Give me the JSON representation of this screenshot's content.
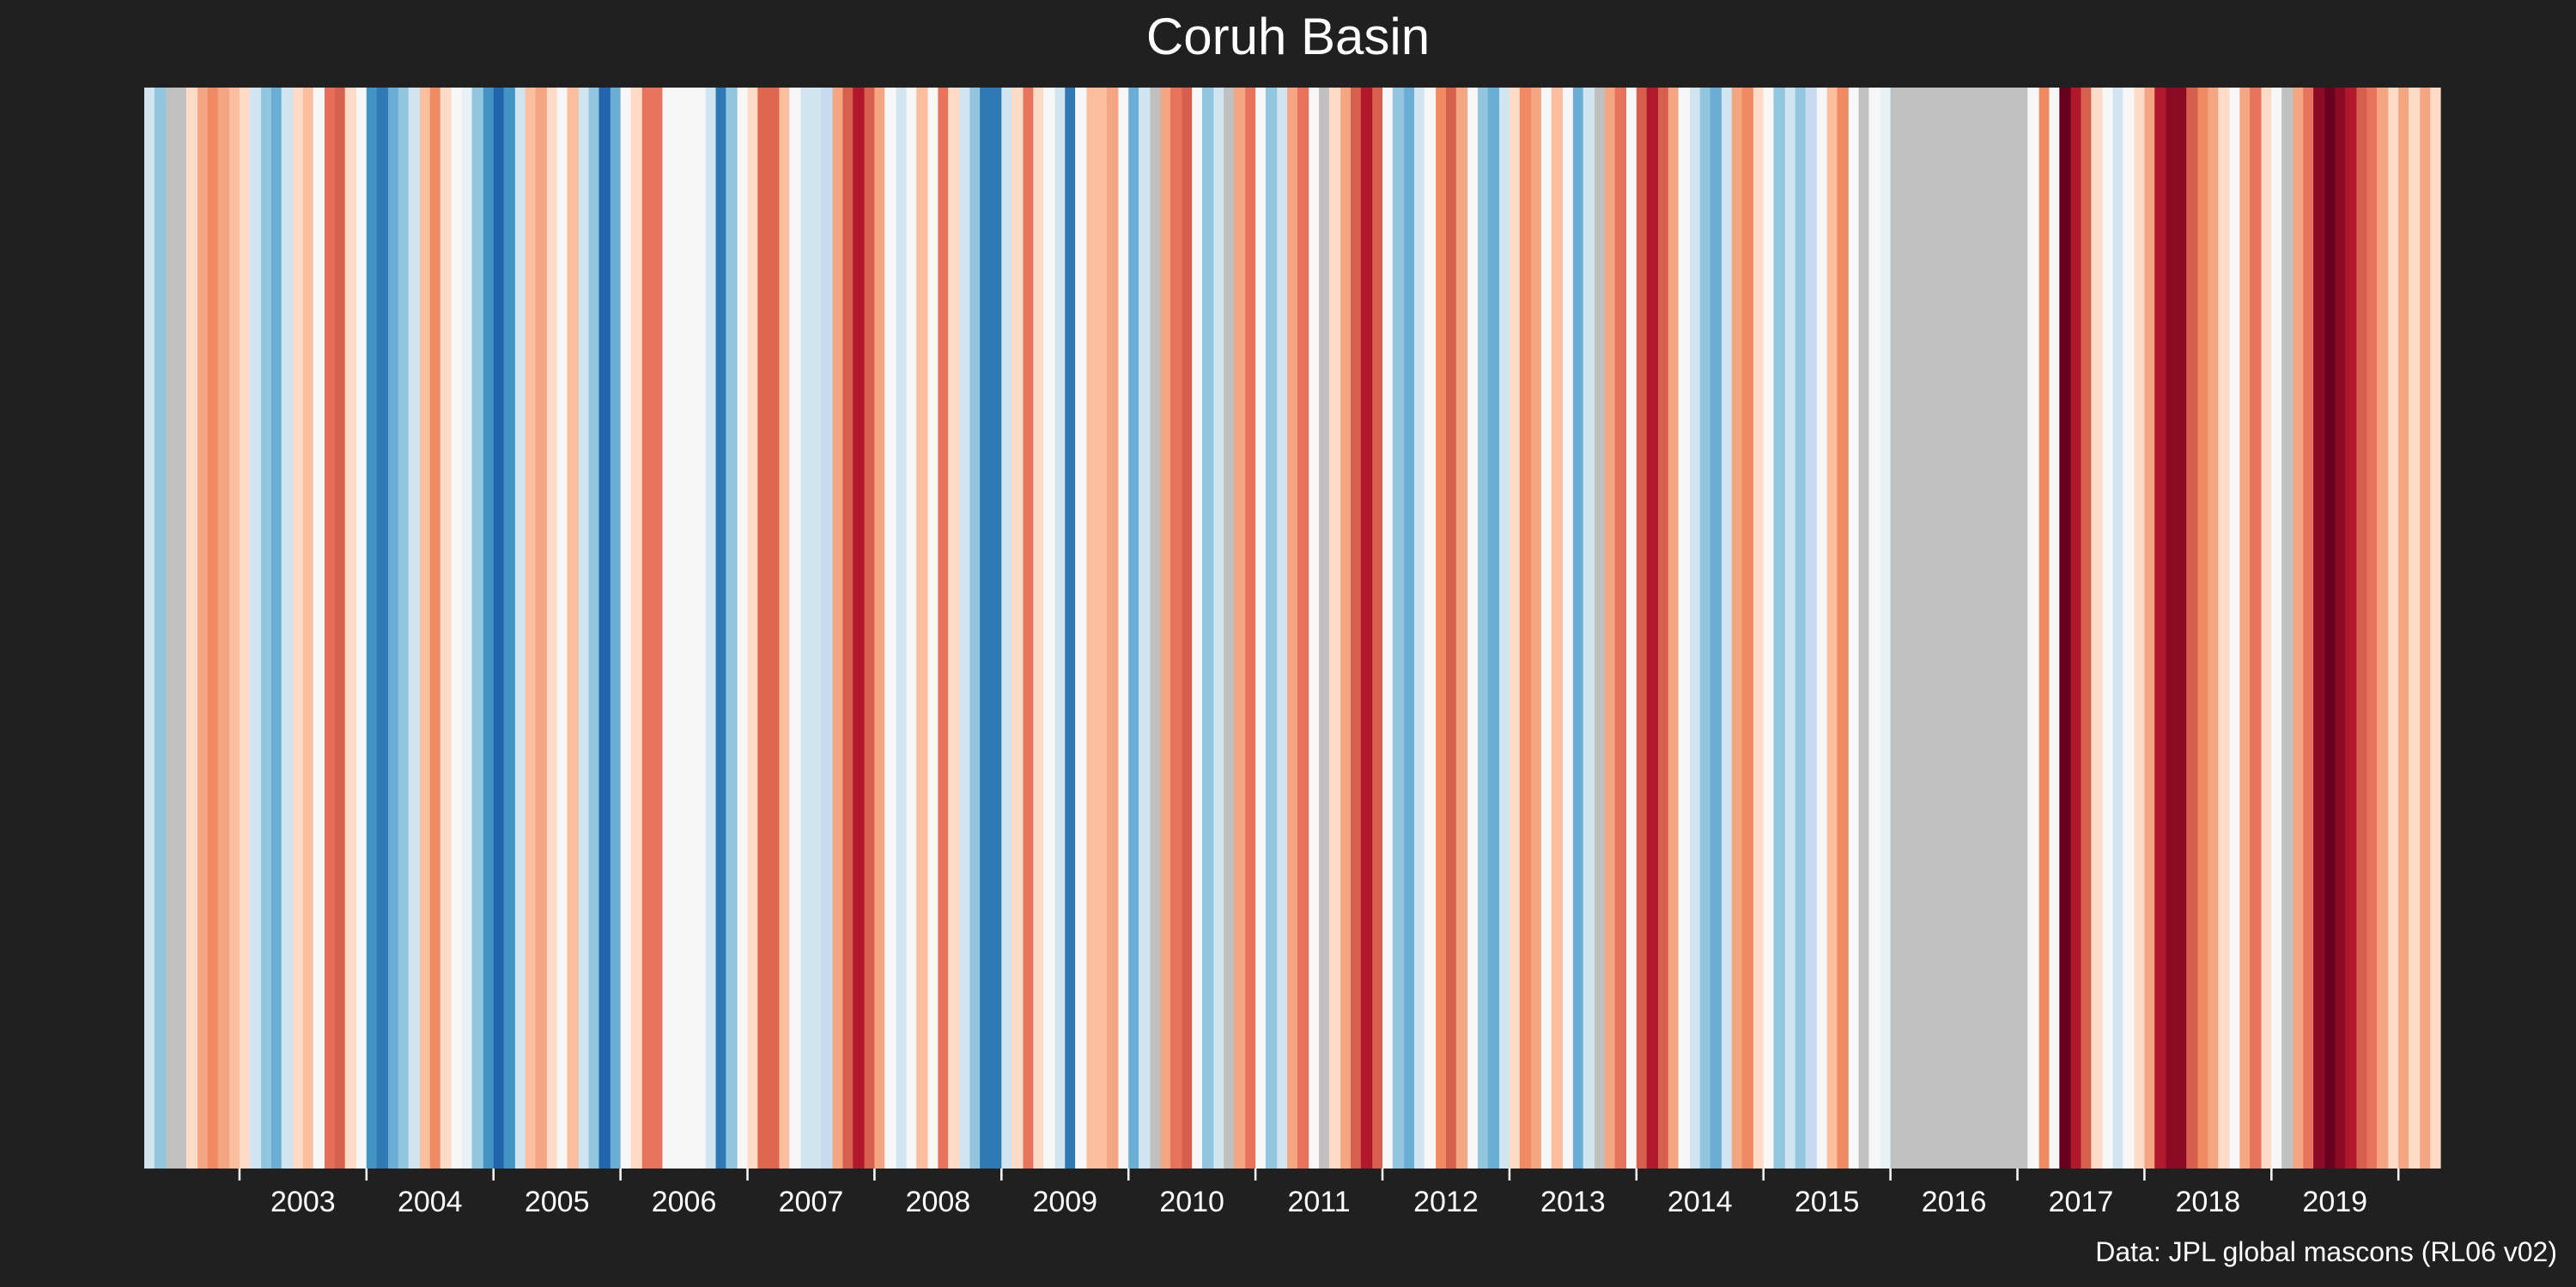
{
  "chart_data": {
    "type": "heatmap",
    "title": "Coruh Basin",
    "caption": "Data: JPL global mascons (RL06 v02)",
    "xlabel": "",
    "ylabel": "",
    "x_start": 2002.25,
    "x_end": 2020.33,
    "xticks": [
      2003,
      2004,
      2005,
      2006,
      2007,
      2008,
      2009,
      2010,
      2011,
      2012,
      2013,
      2014,
      2015,
      2016,
      2017,
      2018,
      2019
    ],
    "grid": false,
    "legend": "none",
    "missing_color": "#c0c0c0",
    "colors": {
      "background": "#202020",
      "text": "#ffffff",
      "missing": "#c0c0c0"
    },
    "stripes": [
      {
        "x0": 2002.25,
        "x1": 2002.33,
        "color": "#d1e5f0"
      },
      {
        "x0": 2002.33,
        "x1": 2002.42,
        "color": "#92c5de"
      },
      {
        "x0": 2002.42,
        "x1": 2002.58,
        "color": "#c0c0c0"
      },
      {
        "x0": 2002.58,
        "x1": 2002.67,
        "color": "#fddbc7"
      },
      {
        "x0": 2002.67,
        "x1": 2002.75,
        "color": "#f4a582"
      },
      {
        "x0": 2002.75,
        "x1": 2002.83,
        "color": "#ef8a62"
      },
      {
        "x0": 2002.83,
        "x1": 2002.92,
        "color": "#f4a582"
      },
      {
        "x0": 2002.92,
        "x1": 2003.0,
        "color": "#fbbfa0"
      },
      {
        "x0": 2003.0,
        "x1": 2003.08,
        "color": "#fddbc7"
      },
      {
        "x0": 2003.08,
        "x1": 2003.17,
        "color": "#d1e5f0"
      },
      {
        "x0": 2003.17,
        "x1": 2003.25,
        "color": "#92c5de"
      },
      {
        "x0": 2003.25,
        "x1": 2003.33,
        "color": "#6aaed6"
      },
      {
        "x0": 2003.33,
        "x1": 2003.42,
        "color": "#d1e5f0"
      },
      {
        "x0": 2003.42,
        "x1": 2003.5,
        "color": "#fddbc7"
      },
      {
        "x0": 2003.5,
        "x1": 2003.58,
        "color": "#fbbfa0"
      },
      {
        "x0": 2003.58,
        "x1": 2003.67,
        "color": "#f7f7f7"
      },
      {
        "x0": 2003.67,
        "x1": 2003.75,
        "color": "#e66f5a"
      },
      {
        "x0": 2003.75,
        "x1": 2003.83,
        "color": "#d6604d"
      },
      {
        "x0": 2003.83,
        "x1": 2003.92,
        "color": "#fddbc7"
      },
      {
        "x0": 2003.92,
        "x1": 2004.0,
        "color": "#f7f7f7"
      },
      {
        "x0": 2004.0,
        "x1": 2004.08,
        "color": "#4393c3"
      },
      {
        "x0": 2004.08,
        "x1": 2004.17,
        "color": "#2f79b5"
      },
      {
        "x0": 2004.17,
        "x1": 2004.25,
        "color": "#6aaed6"
      },
      {
        "x0": 2004.25,
        "x1": 2004.33,
        "color": "#92c5de"
      },
      {
        "x0": 2004.33,
        "x1": 2004.42,
        "color": "#d1e5f0"
      },
      {
        "x0": 2004.42,
        "x1": 2004.5,
        "color": "#fbbfa0"
      },
      {
        "x0": 2004.5,
        "x1": 2004.58,
        "color": "#ef8a62"
      },
      {
        "x0": 2004.58,
        "x1": 2004.67,
        "color": "#fddbc7"
      },
      {
        "x0": 2004.67,
        "x1": 2004.75,
        "color": "#f7f7f7"
      },
      {
        "x0": 2004.75,
        "x1": 2004.83,
        "color": "#e8f1f6"
      },
      {
        "x0": 2004.83,
        "x1": 2004.92,
        "color": "#92c5de"
      },
      {
        "x0": 2004.92,
        "x1": 2005.0,
        "color": "#4393c3"
      },
      {
        "x0": 2005.0,
        "x1": 2005.08,
        "color": "#2166ac"
      },
      {
        "x0": 2005.08,
        "x1": 2005.17,
        "color": "#4393c3"
      },
      {
        "x0": 2005.17,
        "x1": 2005.25,
        "color": "#d1e5f0"
      },
      {
        "x0": 2005.25,
        "x1": 2005.33,
        "color": "#fbbfa0"
      },
      {
        "x0": 2005.33,
        "x1": 2005.42,
        "color": "#f4a582"
      },
      {
        "x0": 2005.42,
        "x1": 2005.5,
        "color": "#fddbc7"
      },
      {
        "x0": 2005.5,
        "x1": 2005.58,
        "color": "#f7f7f7"
      },
      {
        "x0": 2005.58,
        "x1": 2005.67,
        "color": "#fbbfa0"
      },
      {
        "x0": 2005.67,
        "x1": 2005.75,
        "color": "#d1e5f0"
      },
      {
        "x0": 2005.75,
        "x1": 2005.83,
        "color": "#92c5de"
      },
      {
        "x0": 2005.83,
        "x1": 2005.92,
        "color": "#2166ac"
      },
      {
        "x0": 2005.92,
        "x1": 2006.0,
        "color": "#6aaed6"
      },
      {
        "x0": 2006.0,
        "x1": 2006.08,
        "color": "#f7f7f7"
      },
      {
        "x0": 2006.08,
        "x1": 2006.17,
        "color": "#fddbc7"
      },
      {
        "x0": 2006.17,
        "x1": 2006.33,
        "color": "#e8735c"
      },
      {
        "x0": 2006.33,
        "x1": 2006.42,
        "color": "#f7f7f7"
      },
      {
        "x0": 2006.42,
        "x1": 2006.67,
        "color": "#f7f7f7"
      },
      {
        "x0": 2006.67,
        "x1": 2006.75,
        "color": "#d1e5f0"
      },
      {
        "x0": 2006.75,
        "x1": 2006.83,
        "color": "#2f79b5"
      },
      {
        "x0": 2006.83,
        "x1": 2006.92,
        "color": "#92c5de"
      },
      {
        "x0": 2006.92,
        "x1": 2007.0,
        "color": "#f7f7f7"
      },
      {
        "x0": 2007.0,
        "x1": 2007.08,
        "color": "#fddbc7"
      },
      {
        "x0": 2007.08,
        "x1": 2007.25,
        "color": "#e0674f"
      },
      {
        "x0": 2007.25,
        "x1": 2007.33,
        "color": "#fbbfa0"
      },
      {
        "x0": 2007.33,
        "x1": 2007.42,
        "color": "#f7f7f7"
      },
      {
        "x0": 2007.42,
        "x1": 2007.58,
        "color": "#d1e5f0"
      },
      {
        "x0": 2007.58,
        "x1": 2007.67,
        "color": "#c6dbef"
      },
      {
        "x0": 2007.67,
        "x1": 2007.75,
        "color": "#f4a582"
      },
      {
        "x0": 2007.75,
        "x1": 2007.83,
        "color": "#d6604d"
      },
      {
        "x0": 2007.83,
        "x1": 2007.92,
        "color": "#b2182b"
      },
      {
        "x0": 2007.92,
        "x1": 2008.0,
        "color": "#d6604d"
      },
      {
        "x0": 2008.0,
        "x1": 2008.08,
        "color": "#f4a582"
      },
      {
        "x0": 2008.08,
        "x1": 2008.17,
        "color": "#f7f7f7"
      },
      {
        "x0": 2008.17,
        "x1": 2008.25,
        "color": "#d1e5f0"
      },
      {
        "x0": 2008.25,
        "x1": 2008.33,
        "color": "#f7f7f7"
      },
      {
        "x0": 2008.33,
        "x1": 2008.42,
        "color": "#fbbfa0"
      },
      {
        "x0": 2008.42,
        "x1": 2008.5,
        "color": "#f7f7f7"
      },
      {
        "x0": 2008.5,
        "x1": 2008.58,
        "color": "#e8735c"
      },
      {
        "x0": 2008.58,
        "x1": 2008.67,
        "color": "#fddbc7"
      },
      {
        "x0": 2008.67,
        "x1": 2008.75,
        "color": "#d1e5f0"
      },
      {
        "x0": 2008.75,
        "x1": 2008.83,
        "color": "#92c5de"
      },
      {
        "x0": 2008.83,
        "x1": 2009.0,
        "color": "#2f79b5"
      },
      {
        "x0": 2009.0,
        "x1": 2009.08,
        "color": "#d1e5f0"
      },
      {
        "x0": 2009.08,
        "x1": 2009.17,
        "color": "#fddbc7"
      },
      {
        "x0": 2009.17,
        "x1": 2009.25,
        "color": "#e8735c"
      },
      {
        "x0": 2009.25,
        "x1": 2009.33,
        "color": "#fddbc7"
      },
      {
        "x0": 2009.33,
        "x1": 2009.42,
        "color": "#f7f7f7"
      },
      {
        "x0": 2009.42,
        "x1": 2009.5,
        "color": "#d1e5f0"
      },
      {
        "x0": 2009.5,
        "x1": 2009.58,
        "color": "#2f79b5"
      },
      {
        "x0": 2009.58,
        "x1": 2009.67,
        "color": "#f7f7f7"
      },
      {
        "x0": 2009.67,
        "x1": 2009.83,
        "color": "#fbbfa0"
      },
      {
        "x0": 2009.83,
        "x1": 2009.92,
        "color": "#f4a582"
      },
      {
        "x0": 2009.92,
        "x1": 2010.0,
        "color": "#f7f7f7"
      },
      {
        "x0": 2010.0,
        "x1": 2010.08,
        "color": "#6aaed6"
      },
      {
        "x0": 2010.08,
        "x1": 2010.17,
        "color": "#d1e5f0"
      },
      {
        "x0": 2010.17,
        "x1": 2010.25,
        "color": "#c0c0c0"
      },
      {
        "x0": 2010.25,
        "x1": 2010.33,
        "color": "#f4a582"
      },
      {
        "x0": 2010.33,
        "x1": 2010.42,
        "color": "#e8735c"
      },
      {
        "x0": 2010.42,
        "x1": 2010.5,
        "color": "#d6604d"
      },
      {
        "x0": 2010.5,
        "x1": 2010.58,
        "color": "#f7f7f7"
      },
      {
        "x0": 2010.58,
        "x1": 2010.67,
        "color": "#92c5de"
      },
      {
        "x0": 2010.67,
        "x1": 2010.75,
        "color": "#d1e5f0"
      },
      {
        "x0": 2010.75,
        "x1": 2010.83,
        "color": "#c0c0c0"
      },
      {
        "x0": 2010.83,
        "x1": 2010.92,
        "color": "#f4a582"
      },
      {
        "x0": 2010.92,
        "x1": 2011.0,
        "color": "#e8735c"
      },
      {
        "x0": 2011.0,
        "x1": 2011.08,
        "color": "#f7f7f7"
      },
      {
        "x0": 2011.08,
        "x1": 2011.17,
        "color": "#92c5de"
      },
      {
        "x0": 2011.17,
        "x1": 2011.25,
        "color": "#d1e5f0"
      },
      {
        "x0": 2011.25,
        "x1": 2011.33,
        "color": "#f4a582"
      },
      {
        "x0": 2011.33,
        "x1": 2011.42,
        "color": "#e8735c"
      },
      {
        "x0": 2011.42,
        "x1": 2011.5,
        "color": "#f7f7f7"
      },
      {
        "x0": 2011.5,
        "x1": 2011.58,
        "color": "#c0c0c0"
      },
      {
        "x0": 2011.58,
        "x1": 2011.67,
        "color": "#fddbc7"
      },
      {
        "x0": 2011.67,
        "x1": 2011.75,
        "color": "#f4a582"
      },
      {
        "x0": 2011.75,
        "x1": 2011.83,
        "color": "#d6604d"
      },
      {
        "x0": 2011.83,
        "x1": 2011.92,
        "color": "#b2182b"
      },
      {
        "x0": 2011.92,
        "x1": 2012.0,
        "color": "#d6604d"
      },
      {
        "x0": 2012.0,
        "x1": 2012.08,
        "color": "#f7f7f7"
      },
      {
        "x0": 2012.08,
        "x1": 2012.17,
        "color": "#92c5de"
      },
      {
        "x0": 2012.17,
        "x1": 2012.25,
        "color": "#6aaed6"
      },
      {
        "x0": 2012.25,
        "x1": 2012.33,
        "color": "#d1e5f0"
      },
      {
        "x0": 2012.33,
        "x1": 2012.42,
        "color": "#f7f7f7"
      },
      {
        "x0": 2012.42,
        "x1": 2012.5,
        "color": "#ef8a62"
      },
      {
        "x0": 2012.5,
        "x1": 2012.58,
        "color": "#d6604d"
      },
      {
        "x0": 2012.58,
        "x1": 2012.67,
        "color": "#f4a582"
      },
      {
        "x0": 2012.67,
        "x1": 2012.75,
        "color": "#f7f7f7"
      },
      {
        "x0": 2012.75,
        "x1": 2012.83,
        "color": "#92c5de"
      },
      {
        "x0": 2012.83,
        "x1": 2012.92,
        "color": "#6aaed6"
      },
      {
        "x0": 2012.92,
        "x1": 2013.0,
        "color": "#d1e5f0"
      },
      {
        "x0": 2013.0,
        "x1": 2013.08,
        "color": "#fddbc7"
      },
      {
        "x0": 2013.08,
        "x1": 2013.17,
        "color": "#ef8a62"
      },
      {
        "x0": 2013.17,
        "x1": 2013.25,
        "color": "#f4a582"
      },
      {
        "x0": 2013.25,
        "x1": 2013.33,
        "color": "#f7f7f7"
      },
      {
        "x0": 2013.33,
        "x1": 2013.42,
        "color": "#fbbfa0"
      },
      {
        "x0": 2013.42,
        "x1": 2013.5,
        "color": "#f7f7f7"
      },
      {
        "x0": 2013.5,
        "x1": 2013.58,
        "color": "#6aaed6"
      },
      {
        "x0": 2013.58,
        "x1": 2013.67,
        "color": "#d1e5f0"
      },
      {
        "x0": 2013.67,
        "x1": 2013.75,
        "color": "#c0c0c0"
      },
      {
        "x0": 2013.75,
        "x1": 2013.83,
        "color": "#f4a582"
      },
      {
        "x0": 2013.83,
        "x1": 2013.92,
        "color": "#e8735c"
      },
      {
        "x0": 2013.92,
        "x1": 2014.0,
        "color": "#f7f7f7"
      },
      {
        "x0": 2014.0,
        "x1": 2014.08,
        "color": "#d6604d"
      },
      {
        "x0": 2014.08,
        "x1": 2014.17,
        "color": "#b2182b"
      },
      {
        "x0": 2014.17,
        "x1": 2014.25,
        "color": "#d6604d"
      },
      {
        "x0": 2014.25,
        "x1": 2014.33,
        "color": "#f4a582"
      },
      {
        "x0": 2014.33,
        "x1": 2014.42,
        "color": "#f7f7f7"
      },
      {
        "x0": 2014.42,
        "x1": 2014.5,
        "color": "#d1e5f0"
      },
      {
        "x0": 2014.5,
        "x1": 2014.58,
        "color": "#92c5de"
      },
      {
        "x0": 2014.58,
        "x1": 2014.67,
        "color": "#6aaed6"
      },
      {
        "x0": 2014.67,
        "x1": 2014.75,
        "color": "#d1e5f0"
      },
      {
        "x0": 2014.75,
        "x1": 2014.83,
        "color": "#f4a582"
      },
      {
        "x0": 2014.83,
        "x1": 2014.92,
        "color": "#ef8a62"
      },
      {
        "x0": 2014.92,
        "x1": 2015.0,
        "color": "#fddbc7"
      },
      {
        "x0": 2015.0,
        "x1": 2015.08,
        "color": "#f7f7f7"
      },
      {
        "x0": 2015.08,
        "x1": 2015.17,
        "color": "#92c5de"
      },
      {
        "x0": 2015.17,
        "x1": 2015.25,
        "color": "#d1e5f0"
      },
      {
        "x0": 2015.25,
        "x1": 2015.33,
        "color": "#92c5de"
      },
      {
        "x0": 2015.33,
        "x1": 2015.42,
        "color": "#c6dbef"
      },
      {
        "x0": 2015.42,
        "x1": 2015.5,
        "color": "#f7f7f7"
      },
      {
        "x0": 2015.5,
        "x1": 2015.58,
        "color": "#fbbfa0"
      },
      {
        "x0": 2015.58,
        "x1": 2015.67,
        "color": "#ef8a62"
      },
      {
        "x0": 2015.67,
        "x1": 2015.75,
        "color": "#f7f7f7"
      },
      {
        "x0": 2015.75,
        "x1": 2015.83,
        "color": "#c0c0c0"
      },
      {
        "x0": 2015.83,
        "x1": 2015.92,
        "color": "#f7f7f7"
      },
      {
        "x0": 2015.92,
        "x1": 2016.0,
        "color": "#e8f1f6"
      },
      {
        "x0": 2016.0,
        "x1": 2016.17,
        "color": "#c0c0c0"
      },
      {
        "x0": 2016.17,
        "x1": 2017.08,
        "color": "#c0c0c0"
      },
      {
        "x0": 2017.08,
        "x1": 2017.17,
        "color": "#f7f7f7"
      },
      {
        "x0": 2017.17,
        "x1": 2017.25,
        "color": "#ef8a62"
      },
      {
        "x0": 2017.25,
        "x1": 2017.33,
        "color": "#f7f7f7"
      },
      {
        "x0": 2017.33,
        "x1": 2017.42,
        "color": "#67001f"
      },
      {
        "x0": 2017.42,
        "x1": 2017.5,
        "color": "#b2182b"
      },
      {
        "x0": 2017.5,
        "x1": 2017.58,
        "color": "#d6604d"
      },
      {
        "x0": 2017.58,
        "x1": 2017.67,
        "color": "#fddbc7"
      },
      {
        "x0": 2017.67,
        "x1": 2017.75,
        "color": "#f7f7f7"
      },
      {
        "x0": 2017.75,
        "x1": 2017.83,
        "color": "#d1e5f0"
      },
      {
        "x0": 2017.83,
        "x1": 2017.92,
        "color": "#f7f7f7"
      },
      {
        "x0": 2017.92,
        "x1": 2018.0,
        "color": "#fddbc7"
      },
      {
        "x0": 2018.0,
        "x1": 2018.08,
        "color": "#f4a582"
      },
      {
        "x0": 2018.08,
        "x1": 2018.17,
        "color": "#b2182b"
      },
      {
        "x0": 2018.17,
        "x1": 2018.33,
        "color": "#8b0a24"
      },
      {
        "x0": 2018.33,
        "x1": 2018.42,
        "color": "#d6604d"
      },
      {
        "x0": 2018.42,
        "x1": 2018.5,
        "color": "#ef8a62"
      },
      {
        "x0": 2018.5,
        "x1": 2018.58,
        "color": "#f4a582"
      },
      {
        "x0": 2018.58,
        "x1": 2018.67,
        "color": "#fddbc7"
      },
      {
        "x0": 2018.67,
        "x1": 2018.75,
        "color": "#f7f7f7"
      },
      {
        "x0": 2018.75,
        "x1": 2018.83,
        "color": "#f4a582"
      },
      {
        "x0": 2018.83,
        "x1": 2018.92,
        "color": "#e8735c"
      },
      {
        "x0": 2018.92,
        "x1": 2019.0,
        "color": "#fddbc7"
      },
      {
        "x0": 2019.0,
        "x1": 2019.08,
        "color": "#f7f7f7"
      },
      {
        "x0": 2019.08,
        "x1": 2019.17,
        "color": "#c0c0c0"
      },
      {
        "x0": 2019.17,
        "x1": 2019.25,
        "color": "#f4a582"
      },
      {
        "x0": 2019.25,
        "x1": 2019.33,
        "color": "#e8735c"
      },
      {
        "x0": 2019.33,
        "x1": 2019.42,
        "color": "#8b0a24"
      },
      {
        "x0": 2019.42,
        "x1": 2019.5,
        "color": "#67001f"
      },
      {
        "x0": 2019.5,
        "x1": 2019.58,
        "color": "#8b0a24"
      },
      {
        "x0": 2019.58,
        "x1": 2019.67,
        "color": "#b2182b"
      },
      {
        "x0": 2019.67,
        "x1": 2019.75,
        "color": "#d6604d"
      },
      {
        "x0": 2019.75,
        "x1": 2019.83,
        "color": "#e8735c"
      },
      {
        "x0": 2019.83,
        "x1": 2019.92,
        "color": "#f4a582"
      },
      {
        "x0": 2019.92,
        "x1": 2020.0,
        "color": "#fddbc7"
      },
      {
        "x0": 2020.0,
        "x1": 2020.08,
        "color": "#f4a582"
      },
      {
        "x0": 2020.08,
        "x1": 2020.17,
        "color": "#fddbc7"
      },
      {
        "x0": 2020.17,
        "x1": 2020.25,
        "color": "#f4a582"
      },
      {
        "x0": 2020.25,
        "x1": 2020.33,
        "color": "#fddbc7"
      }
    ]
  }
}
